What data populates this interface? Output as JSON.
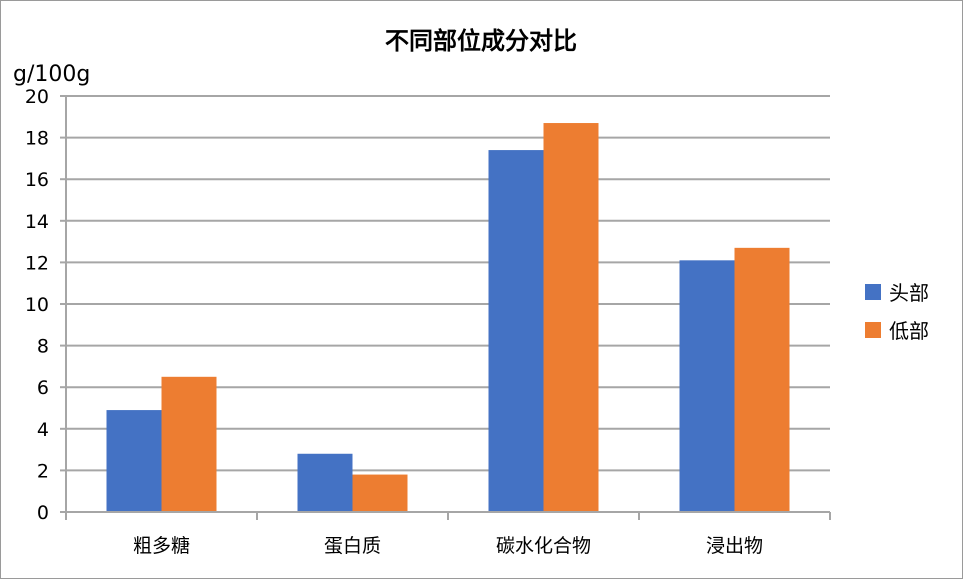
{
  "chart_data": {
    "type": "bar",
    "title": "不同部位成分对比",
    "ylabel": "g/100g",
    "xlabel": "",
    "categories": [
      "粗多糖",
      "蛋白质",
      "碳水化合物",
      "浸出物"
    ],
    "series": [
      {
        "name": "头部",
        "values": [
          4.9,
          2.8,
          17.4,
          12.1
        ],
        "color": "#4472C4"
      },
      {
        "name": "低部",
        "values": [
          6.5,
          1.8,
          18.7,
          12.7
        ],
        "color": "#ED7D31"
      }
    ],
    "ylim": [
      0,
      20
    ],
    "yticks": [
      "0",
      "2",
      "4",
      "6",
      "8",
      "10",
      "12",
      "14",
      "16",
      "18",
      "20"
    ],
    "grid": true,
    "gridColor": "#a6a6a6",
    "legendPosition": "right"
  }
}
